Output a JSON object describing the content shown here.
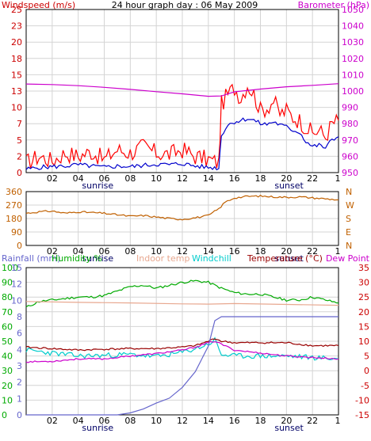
{
  "chart_data": [
    {
      "type": "line",
      "title": "24 hour graph day : 06 May 2009",
      "left_label": "Windspeed (m/s)",
      "right_label": "Barometer (hPa)",
      "x_ticks": [
        "02",
        "04",
        "06",
        "08",
        "10",
        "12",
        "14",
        "16",
        "18",
        "20",
        "22"
      ],
      "x_end_label": "1",
      "sunrise_label": "sunrise",
      "sunset_label": "sunset",
      "y_left_ticks": [
        "0",
        "2",
        "5",
        "7",
        "10",
        "13",
        "15",
        "18",
        "20",
        "23",
        "25"
      ],
      "y_right_ticks": [
        "950",
        "960",
        "970",
        "980",
        "990",
        "1000",
        "1010",
        "1020",
        "1030",
        "1040",
        "1050"
      ],
      "ylim_left": [
        0,
        25
      ],
      "ylim_right": [
        950,
        1050
      ],
      "colors": {
        "gust": "#ff0000",
        "avg": "#0000cc",
        "baro": "#cc00cc",
        "grid": "#d0d0d0",
        "frame": "#000000"
      },
      "series": [
        {
          "name": "Barometer",
          "axis": "right",
          "x": [
            0,
            2,
            4,
            6,
            8,
            10,
            12,
            14,
            15,
            16,
            18,
            20,
            22,
            24
          ],
          "values": [
            1004.3,
            1004,
            1003.3,
            1002.3,
            1001,
            999.6,
            998.3,
            996.8,
            997,
            999.5,
            1001.2,
            1002.6,
            1003.5,
            1004.5
          ]
        },
        {
          "name": "Windspeed avg",
          "axis": "left",
          "x": [
            0,
            1,
            2,
            3,
            4,
            5,
            6,
            7,
            8,
            9,
            10,
            11,
            12,
            13,
            14,
            14.8,
            15,
            15.5,
            16,
            16.5,
            17,
            17.5,
            18,
            18.5,
            19,
            19.5,
            20,
            20.5,
            21,
            21.5,
            22,
            22.5,
            23,
            23.5,
            24
          ],
          "values": [
            0.5,
            0.8,
            0.9,
            1.0,
            1.2,
            1.0,
            0.8,
            1.0,
            0.9,
            1.1,
            1.3,
            1.2,
            1.4,
            1.0,
            0.8,
            0.7,
            5.8,
            7.3,
            7.8,
            8.0,
            8.3,
            8.0,
            7.5,
            7.4,
            7.8,
            7.3,
            7.0,
            6.5,
            6.2,
            4.8,
            4.0,
            4.2,
            3.8,
            5.0,
            5.5
          ]
        },
        {
          "name": "Windspeed gust",
          "axis": "left",
          "x": [
            0,
            1,
            2,
            3,
            4,
            5,
            6,
            7,
            8,
            9,
            10,
            11,
            12,
            13,
            14,
            14.8,
            15,
            15.5,
            16,
            16.5,
            17,
            17.5,
            18,
            18.5,
            19,
            19.5,
            20,
            20.5,
            21,
            21.5,
            22,
            22.5,
            23,
            23.5,
            24
          ],
          "values": [
            1.5,
            2.5,
            1.8,
            3.0,
            2.5,
            3.2,
            2.0,
            3.5,
            3.0,
            4.0,
            3.0,
            2.8,
            3.5,
            2.5,
            2.0,
            1.5,
            10.5,
            12.0,
            13.0,
            11.5,
            13.5,
            12.0,
            9.5,
            10.0,
            11.0,
            9.0,
            9.5,
            8.5,
            8.0,
            7.0,
            6.0,
            6.5,
            5.5,
            7.5,
            8.0
          ]
        }
      ]
    },
    {
      "type": "line",
      "y_ticks": [
        "360",
        "270",
        "180",
        "90",
        "0"
      ],
      "compass_labels": [
        "N",
        "W",
        "S",
        "E",
        "N"
      ],
      "ylim": [
        0,
        360
      ],
      "colors": {
        "dir": "#c06000"
      },
      "series": [
        {
          "name": "Wind direction",
          "x": [
            0,
            1,
            2,
            3,
            4,
            5,
            6,
            7,
            8,
            9,
            10,
            11,
            12,
            13,
            14,
            14.8,
            15.3,
            16,
            17,
            18,
            19,
            20,
            21,
            22,
            23,
            24
          ],
          "values": [
            215,
            225,
            230,
            215,
            225,
            220,
            215,
            205,
            195,
            200,
            190,
            180,
            175,
            185,
            200,
            245,
            290,
            318,
            328,
            330,
            325,
            322,
            325,
            318,
            312,
            305
          ]
        }
      ]
    },
    {
      "type": "line",
      "labels": {
        "rainfall": "Rainfall (mm)",
        "humidity": "Humidity %",
        "indoor": "Indoor temp",
        "windchill": "Windchill",
        "temperature": "Temperature (°C)",
        "dewpoint": "Dew Point"
      },
      "y_left_ticks": [
        "0",
        "10",
        "20",
        "30",
        "40",
        "50",
        "60",
        "70",
        "80",
        "90",
        "100"
      ],
      "y_left_ticks2": [
        "0",
        "1",
        "2",
        "3",
        "4",
        "6",
        "8",
        "10",
        "12",
        "15"
      ],
      "y_right_ticks": [
        "35",
        "30",
        "25",
        "20",
        "15",
        "10",
        "5",
        "0",
        "-5",
        "-10",
        "-15"
      ],
      "ylim_left": [
        0,
        100
      ],
      "ylim_right": [
        -15,
        35
      ],
      "colors": {
        "rain": "#6666cc",
        "humidity": "#00aa00",
        "indoor": "#e8a890",
        "windchill": "#00cccc",
        "temperature": "#990000",
        "dewpoint": "#cc00cc"
      },
      "series": [
        {
          "name": "Humidity",
          "axis": "left",
          "x": [
            0,
            1,
            2,
            3,
            4,
            5,
            6,
            7,
            8,
            9,
            10,
            11,
            12,
            13,
            14,
            15,
            16,
            17,
            18,
            19,
            20,
            21,
            22,
            23,
            24
          ],
          "values": [
            73,
            77,
            78,
            79,
            80,
            80,
            81,
            84,
            87,
            88,
            86,
            88,
            90,
            91,
            90,
            86,
            83,
            82,
            82,
            80,
            78,
            78,
            80,
            78,
            76
          ]
        },
        {
          "name": "Indoor temp",
          "axis": "right",
          "x": [
            0,
            4,
            8,
            12,
            14,
            16,
            20,
            24
          ],
          "values": [
            23.5,
            23.2,
            23,
            22.7,
            22.6,
            22.8,
            22.5,
            22.2
          ]
        },
        {
          "name": "Temperature",
          "axis": "right",
          "x": [
            0,
            2,
            4,
            6,
            8,
            10,
            12,
            13,
            14,
            14.5,
            15,
            16,
            18,
            20,
            22,
            24
          ],
          "values": [
            8,
            7.5,
            7,
            7.3,
            7.5,
            7.5,
            8,
            8.5,
            10,
            11,
            10,
            9.5,
            9.5,
            9.5,
            8.5,
            8.5
          ]
        },
        {
          "name": "Windchill",
          "axis": "right",
          "x": [
            0,
            2,
            4,
            6,
            8,
            10,
            12,
            13,
            14,
            14.5,
            15,
            16,
            18,
            20,
            22,
            24
          ],
          "values": [
            7,
            6,
            5,
            5.2,
            5.5,
            4.8,
            6.2,
            7.5,
            9,
            10.5,
            5.5,
            5,
            5,
            5,
            4.5,
            4
          ]
        },
        {
          "name": "Dew Point",
          "axis": "right",
          "x": [
            0,
            2,
            4,
            6,
            8,
            10,
            12,
            13,
            14,
            14.5,
            15,
            16,
            18,
            20,
            22,
            24
          ],
          "values": [
            3,
            3.2,
            4,
            4,
            5,
            5.8,
            7,
            8,
            9.5,
            10,
            9,
            7,
            6,
            5,
            4.5,
            4
          ]
        },
        {
          "name": "Rainfall",
          "axis": "left2",
          "x": [
            0,
            7,
            8,
            9,
            10,
            11,
            12,
            13,
            14,
            14.5,
            15,
            16,
            24
          ],
          "values": [
            0,
            0,
            0.2,
            0.6,
            1.2,
            1.7,
            2.8,
            4.4,
            7.0,
            9.6,
            10,
            10,
            10
          ]
        }
      ]
    }
  ]
}
